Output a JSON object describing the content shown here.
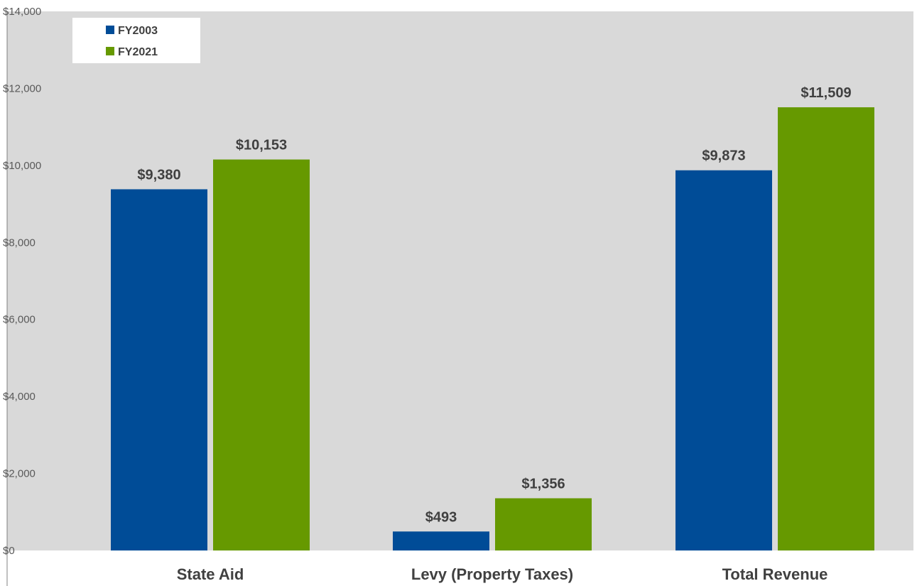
{
  "chart_data": {
    "type": "bar",
    "categories": [
      "State Aid",
      "Levy (Property Taxes)",
      "Total Revenue"
    ],
    "series": [
      {
        "name": "FY2003",
        "color": "#004C97",
        "values": [
          9380,
          493,
          9873
        ],
        "labels": [
          "$9,380",
          "$493",
          "$9,873"
        ]
      },
      {
        "name": "FY2021",
        "color": "#669900",
        "values": [
          10153,
          1356,
          11509
        ],
        "labels": [
          "$10,153",
          "$1,356",
          "$11,509"
        ]
      }
    ],
    "ylim": [
      0,
      14000
    ],
    "yticks": [
      0,
      2000,
      4000,
      6000,
      8000,
      10000,
      12000,
      14000
    ],
    "ytick_labels": [
      "$0",
      "$2,000",
      "$4,000",
      "$6,000",
      "$8,000",
      "$10,000",
      "$12,000",
      "$14,000"
    ],
    "title": "",
    "xlabel": "",
    "ylabel": "",
    "legend_position": "top-left",
    "plot_background": "#D9D9D9",
    "grid": false
  }
}
